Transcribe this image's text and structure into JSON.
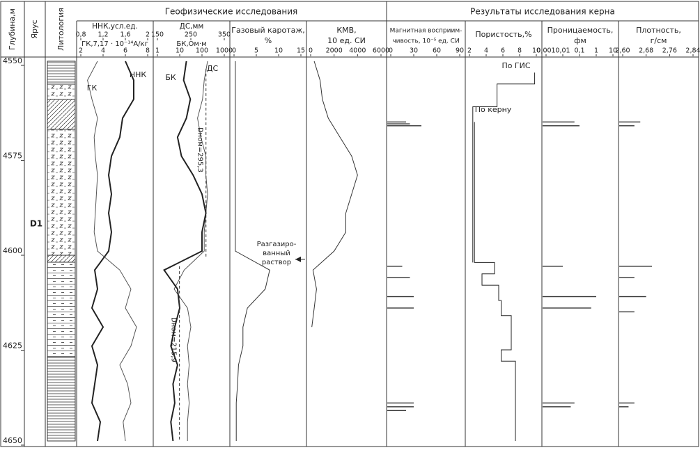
{
  "header": {
    "geophysics": "Геофизические исследования",
    "core": "Результаты исследования керна",
    "depth": "Глубина,м",
    "stage": "Ярус",
    "lithology": "Литология",
    "stage_name": "D1"
  },
  "depth": {
    "ylim": [
      4550,
      4650
    ],
    "yticks": [
      4550,
      4575,
      4600,
      4625,
      4650
    ],
    "values": [
      4550,
      4555,
      4560,
      4565,
      4570,
      4575,
      4580,
      4585,
      4590,
      4595,
      4600,
      4605,
      4610,
      4615,
      4620,
      4625,
      4630,
      4635,
      4640,
      4645,
      4650
    ]
  },
  "chart_data": [
    {
      "type": "line",
      "title": [
        "ННК,усл.ед."
      ],
      "xlim": [
        0.8,
        2
      ],
      "xticks": [
        {
          "value": 0.8,
          "label": "0,8"
        },
        {
          "value": 1.2,
          "label": "1,2"
        },
        {
          "value": 1.6,
          "label": "1,6"
        },
        2
      ],
      "x2title": "ГК,7,17 · 10⁻¹⁴А/кг",
      "x2lim": [
        2,
        8
      ],
      "x2ticks": [
        2,
        4,
        6,
        8
      ],
      "series": [
        {
          "name": "ННК",
          "color": "#222222",
          "values": [
            1.6,
            1.75,
            1.75,
            1.55,
            1.5,
            1.35,
            1.3,
            1.35,
            1.3,
            1.35,
            1.3,
            1.05,
            1.1,
            1.0,
            1.2,
            1.0,
            1.1,
            1.05,
            1.0,
            1.15,
            1.1
          ]
        },
        {
          "name": "ГК",
          "color": "#555555",
          "axis": "x2",
          "values": [
            3.5,
            2.6,
            3.0,
            3.5,
            3.2,
            3.3,
            3.5,
            3.4,
            3.3,
            3.2,
            3.5,
            5.5,
            6.5,
            6.0,
            7.0,
            6.5,
            5.5,
            6.2,
            6.5,
            5.8,
            6.0
          ]
        }
      ]
    },
    {
      "type": "line",
      "title": [
        "ДС,мм"
      ],
      "xlim": [
        150,
        350
      ],
      "xticks": [
        150,
        250,
        350
      ],
      "x2title": "БК,Ом·м",
      "x2lim": [
        1,
        1000
      ],
      "x2log": true,
      "x2ticks": [
        1,
        10,
        100,
        1000
      ],
      "series": [
        {
          "name": "ДС",
          "color": "#555555",
          "values": [
            300,
            290,
            285,
            270,
            280,
            295,
            295,
            300,
            295,
            290,
            290,
            230,
            200,
            240,
            250,
            240,
            245,
            240,
            245,
            240,
            240
          ]
        },
        {
          "name": "БК",
          "color": "#222222",
          "axis": "x2",
          "values": [
            20,
            15,
            30,
            20,
            8,
            12,
            40,
            100,
            150,
            100,
            100,
            2,
            8,
            10,
            6,
            4,
            8,
            5,
            6,
            4,
            5
          ]
        }
      ],
      "nominal": [
        {
          "value": 295.3,
          "label": "Dном=295,3",
          "from": 4552,
          "to": 4602
        },
        {
          "value": 215.9,
          "label": "Dном=215,9",
          "from": 4604,
          "to": 4650
        }
      ]
    },
    {
      "type": "line",
      "title": [
        "Газовый каротаж,",
        "%"
      ],
      "xlim": [
        0,
        15
      ],
      "xticks": [
        0,
        5,
        10,
        15
      ],
      "series": [
        {
          "name": "",
          "color": "#333333",
          "values": [
            0.3,
            0.3,
            0.3,
            0.3,
            0.3,
            0.3,
            0.3,
            0.3,
            0.3,
            0.3,
            0.3,
            8,
            7,
            3,
            2,
            2,
            1,
            0.8,
            0.5,
            0.5,
            0.5
          ]
        }
      ],
      "annotation": {
        "lines": [
          "Разгазиро-",
          "ванный",
          "раствор"
        ],
        "depth": 4604
      }
    },
    {
      "type": "line",
      "title": [
        "КМВ,",
        "10  ед. СИ"
      ],
      "xlim": [
        0,
        6000
      ],
      "xticks": [
        0,
        2000,
        4000,
        6000
      ],
      "series": [
        {
          "name": "",
          "color": "#333333",
          "values": [
            300,
            800,
            1000,
            1500,
            2500,
            3500,
            4000,
            3500,
            3000,
            3000,
            2000,
            200,
            500,
            300,
            100,
            null,
            null,
            null,
            null,
            null,
            null
          ]
        }
      ]
    },
    {
      "type": "bar",
      "title": [
        "Магнитная восприим-",
        "чивость, 10⁻⁵ ед. СИ"
      ],
      "xlim": [
        0,
        90
      ],
      "xticks": [
        0,
        30,
        60,
        90
      ],
      "depths": [
        4566,
        4566.5,
        4567,
        4604,
        4607,
        4612,
        4615,
        4640,
        4641,
        4642
      ],
      "values": [
        20,
        25,
        40,
        15,
        25,
        30,
        30,
        30,
        30,
        20
      ],
      "color": "#333333"
    },
    {
      "type": "line",
      "title": [
        "Пористость,%"
      ],
      "xlim": [
        2,
        10
      ],
      "xticks": [
        2,
        4,
        6,
        8,
        10
      ],
      "series": [
        {
          "name": "По ГИС",
          "color": "#222222",
          "depths": [
            4553,
            4556,
            4556,
            4562,
            4562,
            4603
          ],
          "values": [
            9.8,
            9.8,
            5.3,
            5.3,
            2.4,
            2.4
          ]
        },
        {
          "name": "По керну",
          "color": "#222222",
          "depths": [
            4566,
            4603,
            4603,
            4606,
            4606,
            4609,
            4609,
            4613,
            4613,
            4617,
            4617,
            4626,
            4626,
            4629,
            4629,
            4650
          ],
          "values": [
            2.6,
            2.6,
            5,
            5,
            3.5,
            3.5,
            5.5,
            5.5,
            5.8,
            5.8,
            7,
            7,
            5.8,
            5.8,
            7.5,
            7.5
          ]
        }
      ]
    },
    {
      "type": "bar",
      "title": [
        "Проницаемость,",
        "фм"
      ],
      "xlim": [
        0.001,
        10
      ],
      "xlog": true,
      "xticks": [
        {
          "value": 0.001,
          "label": "0,001"
        },
        {
          "value": 0.01,
          "label": "0,01"
        },
        {
          "value": 0.1,
          "label": "0,1"
        },
        1,
        10
      ],
      "depths": [
        4566,
        4567,
        4604,
        4612,
        4615,
        4640,
        4641
      ],
      "values": [
        0.05,
        0.1,
        0.01,
        1,
        0.5,
        0.05,
        0.03
      ],
      "color": "#333333"
    },
    {
      "type": "bar",
      "title": [
        "Плотность,",
        "г/см"
      ],
      "xlim": [
        2.6,
        2.84
      ],
      "xticks": [
        {
          "value": 2.6,
          "label": "2,60"
        },
        {
          "value": 2.68,
          "label": "2,68"
        },
        {
          "value": 2.76,
          "label": "2,76"
        },
        {
          "value": 2.84,
          "label": "2,84"
        }
      ],
      "depths": [
        4566,
        4567,
        4604,
        4607,
        4612,
        4616,
        4640,
        4641
      ],
      "values": [
        2.66,
        2.64,
        2.7,
        2.64,
        2.68,
        2.64,
        2.64,
        2.62
      ],
      "color": "#333333"
    }
  ]
}
